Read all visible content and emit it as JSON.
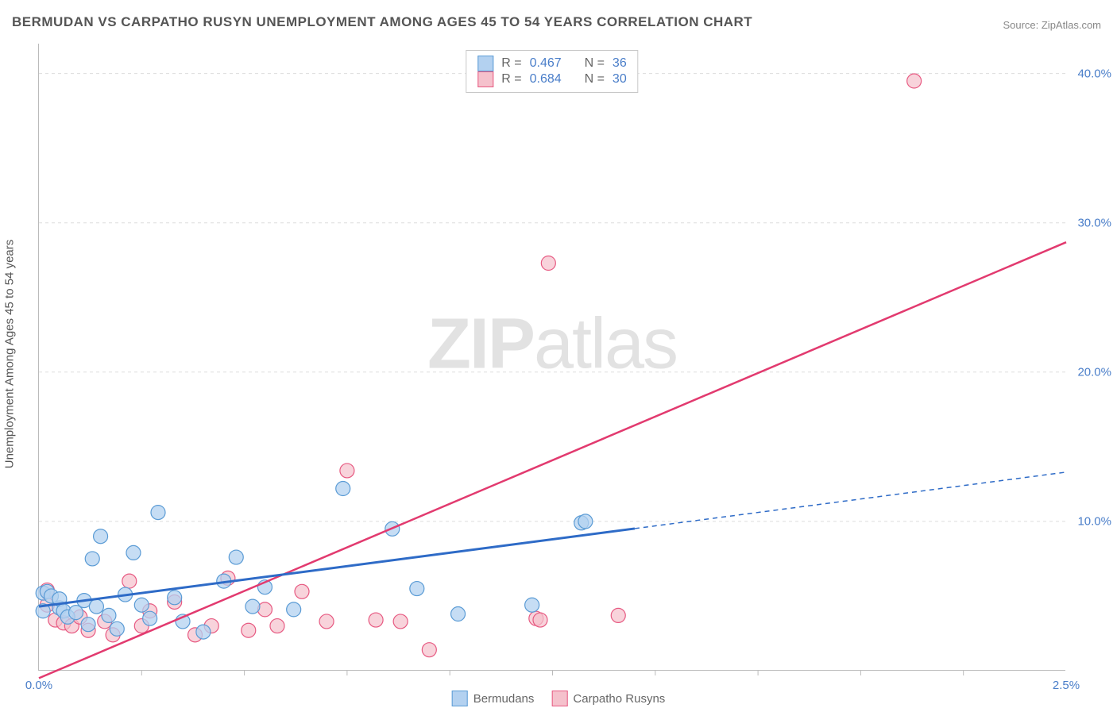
{
  "title": "BERMUDAN VS CARPATHO RUSYN UNEMPLOYMENT AMONG AGES 45 TO 54 YEARS CORRELATION CHART",
  "source": "Source: ZipAtlas.com",
  "y_axis_label": "Unemployment Among Ages 45 to 54 years",
  "watermark_bold": "ZIP",
  "watermark_light": "atlas",
  "chart": {
    "type": "scatter",
    "xlim": [
      0.0,
      2.5
    ],
    "ylim": [
      0.0,
      42.0
    ],
    "x_ticks": [
      0.0,
      2.5
    ],
    "x_tick_labels": [
      "0.0%",
      "2.5%"
    ],
    "x_minor_steps": 10,
    "y_ticks": [
      10.0,
      20.0,
      30.0,
      40.0
    ],
    "y_tick_labels": [
      "10.0%",
      "20.0%",
      "30.0%",
      "40.0%"
    ],
    "grid_color": "#dddddd",
    "background_color": "#ffffff",
    "axis_color": "#bbbbbb",
    "tick_label_color": "#4a7ec9",
    "tick_label_fontsize": 15
  },
  "series_a": {
    "name": "Bermudans",
    "color_fill": "#b3d1f0",
    "color_stroke": "#5a9bd5",
    "marker_radius": 9,
    "marker_opacity": 0.75,
    "trend_color": "#2e6bc7",
    "trend_width": 3,
    "trend_solid_to_x": 1.45,
    "trend_y_at_0": 4.3,
    "trend_y_at_2_5": 13.3,
    "R": "0.467",
    "N": "36",
    "points": [
      [
        0.01,
        5.2
      ],
      [
        0.01,
        4.0
      ],
      [
        0.02,
        5.3
      ],
      [
        0.03,
        5.0
      ],
      [
        0.05,
        4.2
      ],
      [
        0.05,
        4.8
      ],
      [
        0.06,
        4.0
      ],
      [
        0.07,
        3.6
      ],
      [
        0.09,
        3.9
      ],
      [
        0.11,
        4.7
      ],
      [
        0.12,
        3.1
      ],
      [
        0.13,
        7.5
      ],
      [
        0.14,
        4.3
      ],
      [
        0.15,
        9.0
      ],
      [
        0.17,
        3.7
      ],
      [
        0.19,
        2.8
      ],
      [
        0.21,
        5.1
      ],
      [
        0.23,
        7.9
      ],
      [
        0.25,
        4.4
      ],
      [
        0.27,
        3.5
      ],
      [
        0.29,
        10.6
      ],
      [
        0.33,
        4.9
      ],
      [
        0.35,
        3.3
      ],
      [
        0.4,
        2.6
      ],
      [
        0.45,
        6.0
      ],
      [
        0.48,
        7.6
      ],
      [
        0.52,
        4.3
      ],
      [
        0.55,
        5.6
      ],
      [
        0.62,
        4.1
      ],
      [
        0.74,
        12.2
      ],
      [
        0.86,
        9.5
      ],
      [
        0.92,
        5.5
      ],
      [
        1.02,
        3.8
      ],
      [
        1.2,
        4.4
      ],
      [
        1.32,
        9.9
      ],
      [
        1.33,
        10.0
      ]
    ]
  },
  "series_b": {
    "name": "Carpatho Rusyns",
    "color_fill": "#f5c1cc",
    "color_stroke": "#e75a82",
    "marker_radius": 9,
    "marker_opacity": 0.7,
    "trend_color": "#e23a6f",
    "trend_width": 2.5,
    "trend_y_at_0": -0.5,
    "trend_y_at_2_5": 28.7,
    "R": "0.684",
    "N": "30",
    "points": [
      [
        0.02,
        5.4
      ],
      [
        0.02,
        4.4
      ],
      [
        0.04,
        3.4
      ],
      [
        0.06,
        3.2
      ],
      [
        0.08,
        3.0
      ],
      [
        0.1,
        3.6
      ],
      [
        0.12,
        2.7
      ],
      [
        0.16,
        3.3
      ],
      [
        0.18,
        2.4
      ],
      [
        0.22,
        6.0
      ],
      [
        0.25,
        3.0
      ],
      [
        0.27,
        4.0
      ],
      [
        0.33,
        4.6
      ],
      [
        0.38,
        2.4
      ],
      [
        0.42,
        3.0
      ],
      [
        0.46,
        6.2
      ],
      [
        0.51,
        2.7
      ],
      [
        0.55,
        4.1
      ],
      [
        0.58,
        3.0
      ],
      [
        0.64,
        5.3
      ],
      [
        0.7,
        3.3
      ],
      [
        0.75,
        13.4
      ],
      [
        0.82,
        3.4
      ],
      [
        0.88,
        3.3
      ],
      [
        0.95,
        1.4
      ],
      [
        1.21,
        3.5
      ],
      [
        1.22,
        3.4
      ],
      [
        1.24,
        27.3
      ],
      [
        1.41,
        3.7
      ],
      [
        2.13,
        39.5
      ]
    ]
  },
  "stat_labels": {
    "R": "R =",
    "N": "N ="
  },
  "legend": {
    "a_label": "Bermudans",
    "b_label": "Carpatho Rusyns"
  }
}
